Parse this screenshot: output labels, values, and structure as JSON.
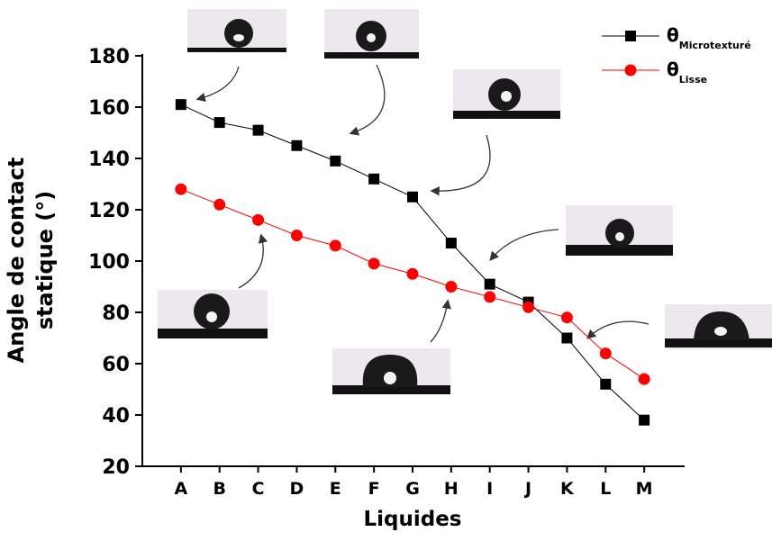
{
  "chart_data": {
    "type": "line",
    "ylabel": [
      "Angle de contact",
      "statique (°)"
    ],
    "xlabel": "Liquides",
    "categories": [
      "A",
      "B",
      "C",
      "D",
      "E",
      "F",
      "G",
      "H",
      "I",
      "J",
      "K",
      "L",
      "M"
    ],
    "series": [
      {
        "name": "θ",
        "subscript": "Microtexturé",
        "color": "#000000",
        "marker": "square",
        "values": [
          161,
          154,
          151,
          145,
          139,
          132,
          125,
          107,
          91,
          84,
          70,
          52,
          38
        ]
      },
      {
        "name": "θ",
        "subscript": "Lisse",
        "color": "#ff0000",
        "marker": "circle",
        "values": [
          128,
          122,
          116,
          110,
          106,
          99,
          95,
          90,
          86,
          82,
          78,
          64,
          54
        ]
      }
    ],
    "ylim": [
      20,
      180
    ],
    "yticks": [
      20,
      40,
      60,
      80,
      100,
      120,
      140,
      160,
      180
    ],
    "grid": false
  }
}
